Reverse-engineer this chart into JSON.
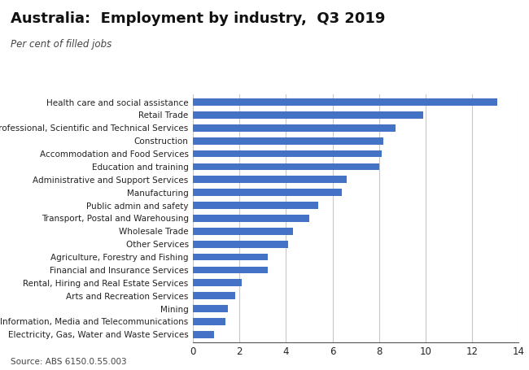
{
  "title": "Australia:  Employment by industry,  Q3 2019",
  "subtitle": "Per cent of filled jobs",
  "source": "Source: ABS 6150.0.55.003",
  "categories": [
    "Electricity, Gas, Water and Waste Services",
    "Information, Media and Telecommunications",
    "Mining",
    "Arts and Recreation Services",
    "Rental, Hiring and Real Estate Services",
    "Financial and Insurance Services",
    "Agriculture, Forestry and Fishing",
    "Other Services",
    "Wholesale Trade",
    "Transport, Postal and Warehousing",
    "Public admin and safety",
    "Manufacturing",
    "Administrative and Support Services",
    "Education and training",
    "Accommodation and Food Services",
    "Construction",
    "Professional, Scientific and Technical Services",
    "Retail Trade",
    "Health care and social assistance"
  ],
  "values": [
    0.9,
    1.4,
    1.5,
    1.8,
    2.1,
    3.2,
    3.2,
    4.1,
    4.3,
    5.0,
    5.4,
    6.4,
    6.6,
    8.0,
    8.1,
    8.2,
    8.7,
    9.9,
    13.1
  ],
  "bar_color": "#4472C4",
  "xlim": [
    0,
    14
  ],
  "xticks": [
    0,
    2,
    4,
    6,
    8,
    10,
    12,
    14
  ],
  "grid_color": "#c8c8c8",
  "background_color": "#ffffff",
  "title_fontsize": 13,
  "subtitle_fontsize": 8.5,
  "label_fontsize": 7.5,
  "tick_fontsize": 8.5,
  "source_fontsize": 7.5
}
